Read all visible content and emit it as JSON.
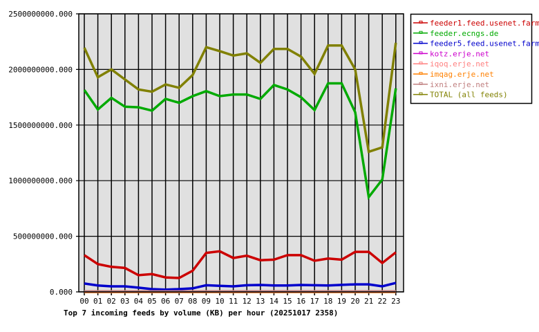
{
  "chart_data": {
    "type": "line",
    "title": "Top 7 incoming feeds by volume (KB) per hour (20251017 2358)",
    "xlabel": "",
    "ylabel": "",
    "ylim": [
      0,
      2500000000
    ],
    "yticks": [
      "0.000",
      "500000000.000",
      "1000000000.000",
      "1500000000.000",
      "2000000000.000",
      "2500000000.000"
    ],
    "ytick_values": [
      0,
      500000000,
      1000000000,
      1500000000,
      2000000000,
      2500000000
    ],
    "grid": true,
    "legend_position": "right",
    "categories": [
      "00",
      "01",
      "02",
      "03",
      "04",
      "05",
      "06",
      "07",
      "08",
      "09",
      "10",
      "11",
      "12",
      "13",
      "14",
      "15",
      "16",
      "17",
      "18",
      "19",
      "20",
      "21",
      "22",
      "23"
    ],
    "series": [
      {
        "name": "feeder1.feed.usenet.farm",
        "color": "#cc0000",
        "values": [
          330000000,
          250000000,
          225000000,
          215000000,
          150000000,
          160000000,
          130000000,
          125000000,
          190000000,
          350000000,
          365000000,
          305000000,
          325000000,
          285000000,
          290000000,
          330000000,
          330000000,
          280000000,
          300000000,
          290000000,
          360000000,
          360000000,
          260000000,
          355000000
        ]
      },
      {
        "name": "feeder.ecngs.de",
        "color": "#00aa00",
        "values": [
          1815000000,
          1640000000,
          1745000000,
          1665000000,
          1660000000,
          1630000000,
          1735000000,
          1700000000,
          1760000000,
          1805000000,
          1760000000,
          1775000000,
          1775000000,
          1735000000,
          1860000000,
          1820000000,
          1750000000,
          1635000000,
          1875000000,
          1875000000,
          1615000000,
          852000000,
          1010000000,
          1830000000
        ]
      },
      {
        "name": "feeder5.feed.usenet.farm",
        "color": "#0000cc",
        "values": [
          75000000,
          58000000,
          50000000,
          50000000,
          38000000,
          25000000,
          20000000,
          25000000,
          32000000,
          60000000,
          55000000,
          50000000,
          60000000,
          62000000,
          58000000,
          58000000,
          62000000,
          60000000,
          58000000,
          63000000,
          68000000,
          68000000,
          50000000,
          80000000
        ]
      },
      {
        "name": "kotz.erje.net",
        "color": "#cc00cc",
        "values": [
          0,
          0,
          0,
          0,
          0,
          0,
          0,
          0,
          0,
          0,
          0,
          0,
          0,
          0,
          0,
          0,
          0,
          0,
          0,
          0,
          0,
          0,
          0,
          0
        ]
      },
      {
        "name": "iqoq.erje.net",
        "color": "#ff8080",
        "values": [
          0,
          0,
          0,
          0,
          0,
          0,
          0,
          0,
          0,
          0,
          0,
          0,
          0,
          0,
          0,
          0,
          0,
          0,
          0,
          0,
          0,
          0,
          0,
          0
        ]
      },
      {
        "name": "imqag.erje.net",
        "color": "#ff8000",
        "values": [
          0,
          0,
          0,
          0,
          0,
          0,
          0,
          0,
          0,
          0,
          0,
          0,
          0,
          0,
          0,
          0,
          0,
          0,
          0,
          0,
          0,
          0,
          0,
          0
        ]
      },
      {
        "name": "ixni.erje.net",
        "color": "#c08080",
        "values": [
          5000000,
          5000000,
          5000000,
          5000000,
          5000000,
          5000000,
          5000000,
          5000000,
          5000000,
          5000000,
          5000000,
          5000000,
          5000000,
          5000000,
          5000000,
          5000000,
          5000000,
          5000000,
          5000000,
          5000000,
          5000000,
          5000000,
          5000000,
          5000000
        ]
      },
      {
        "name": "TOTAL (all feeds)",
        "color": "#808000",
        "values": [
          2195000000,
          1930000000,
          2000000000,
          1910000000,
          1820000000,
          1800000000,
          1865000000,
          1835000000,
          1950000000,
          2200000000,
          2165000000,
          2125000000,
          2145000000,
          2060000000,
          2185000000,
          2185000000,
          2115000000,
          1960000000,
          2215000000,
          2215000000,
          2000000000,
          1260000000,
          1300000000,
          2240000000
        ]
      }
    ]
  },
  "legend": {
    "items": [
      {
        "label": "feeder1.feed.usenet.farm",
        "color": "#cc0000"
      },
      {
        "label": "feeder.ecngs.de",
        "color": "#00aa00"
      },
      {
        "label": "feeder5.feed.usenet.farm",
        "color": "#0000cc"
      },
      {
        "label": "kotz.erje.net",
        "color": "#cc00cc"
      },
      {
        "label": "iqoq.erje.net",
        "color": "#ff8080"
      },
      {
        "label": "imqag.erje.net",
        "color": "#ff8000"
      },
      {
        "label": "ixni.erje.net",
        "color": "#c08080"
      },
      {
        "label": "TOTAL (all feeds)",
        "color": "#808000"
      }
    ]
  },
  "colors": {
    "plot_background": "#e0e0e0",
    "grid": "#000000",
    "page_background": "#ffffff"
  }
}
